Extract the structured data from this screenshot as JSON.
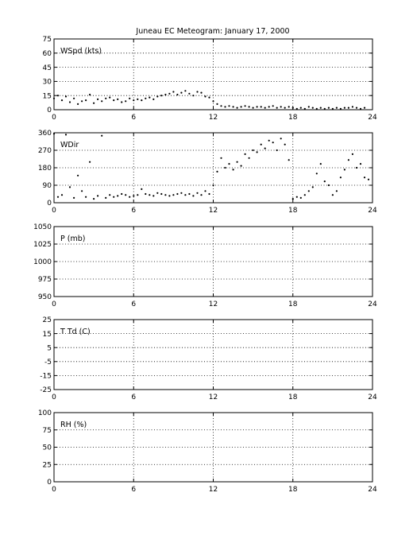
{
  "title": "Juneau EC Meteogram:   January 17, 2000",
  "chart_data": [
    {
      "type": "scatter",
      "panel_label": "WSpd (kts)",
      "xlim": [
        0,
        24
      ],
      "x_ticks": [
        0,
        6,
        12,
        18,
        24
      ],
      "ylim": [
        0,
        75
      ],
      "y_ticks": [
        0,
        15,
        30,
        45,
        60,
        75
      ],
      "grid": true,
      "series": [
        {
          "x": [
            0.0,
            0.3,
            0.6,
            0.9,
            1.2,
            1.5,
            1.8,
            2.1,
            2.4,
            2.7,
            3.0,
            3.3,
            3.6,
            3.9,
            4.2,
            4.5,
            4.8,
            5.1,
            5.4,
            5.7,
            6.0,
            6.3,
            6.6,
            6.9,
            7.2,
            7.5,
            7.8,
            8.1,
            8.4,
            8.7,
            9.0,
            9.3,
            9.6,
            9.9,
            10.2,
            10.5,
            10.8,
            11.1,
            11.4,
            11.7,
            12.0,
            12.3,
            12.6,
            12.9,
            13.2,
            13.5,
            13.8,
            14.1,
            14.4,
            14.7,
            15.0,
            15.3,
            15.6,
            15.9,
            16.2,
            16.5,
            16.8,
            17.1,
            17.4,
            17.7,
            18.0,
            18.3,
            18.6,
            18.9,
            19.2,
            19.5,
            19.8,
            20.1,
            20.4,
            20.7,
            21.0,
            21.3,
            21.6,
            21.9,
            22.2,
            22.5,
            22.8,
            23.1,
            23.4
          ],
          "y": [
            12,
            15,
            10,
            14,
            8,
            12,
            6,
            9,
            10,
            16,
            7,
            11,
            9,
            12,
            13,
            10,
            11,
            8,
            9,
            12,
            10,
            11,
            10,
            12,
            13,
            11,
            14,
            15,
            16,
            17,
            19,
            16,
            18,
            20,
            17,
            15,
            19,
            18,
            14,
            13,
            9,
            6,
            4,
            3,
            4,
            3,
            2,
            3,
            4,
            3,
            2,
            3,
            3,
            2,
            3,
            4,
            2,
            3,
            2,
            3,
            2,
            1,
            2,
            1,
            3,
            2,
            1,
            2,
            1,
            2,
            1,
            2,
            1,
            2,
            2,
            3,
            2,
            1,
            2
          ]
        }
      ]
    },
    {
      "type": "scatter",
      "panel_label": "WDir",
      "xlim": [
        0,
        24
      ],
      "x_ticks": [
        0,
        6,
        12,
        18,
        24
      ],
      "ylim": [
        0,
        360
      ],
      "y_ticks": [
        0,
        90,
        180,
        270,
        360
      ],
      "grid": true,
      "series": [
        {
          "x": [
            0.0,
            0.3,
            0.6,
            0.9,
            1.2,
            1.5,
            1.8,
            2.1,
            2.4,
            2.7,
            3.0,
            3.3,
            3.6,
            3.9,
            4.2,
            4.5,
            4.8,
            5.1,
            5.4,
            5.7,
            6.0,
            6.3,
            6.6,
            6.9,
            7.2,
            7.5,
            7.8,
            8.1,
            8.4,
            8.7,
            9.0,
            9.3,
            9.6,
            9.9,
            10.2,
            10.5,
            10.8,
            11.1,
            11.4,
            11.7,
            12.0,
            12.3,
            12.6,
            12.9,
            13.2,
            13.5,
            13.8,
            14.1,
            14.4,
            14.7,
            15.0,
            15.3,
            15.6,
            15.9,
            16.2,
            16.5,
            16.8,
            17.1,
            17.4,
            17.7,
            18.0,
            18.3,
            18.6,
            18.9,
            19.2,
            19.5,
            19.8,
            20.1,
            20.4,
            20.7,
            21.0,
            21.3,
            21.6,
            21.9,
            22.2,
            22.5,
            22.8,
            23.1,
            23.4,
            23.7
          ],
          "y": [
            355,
            30,
            40,
            350,
            80,
            25,
            140,
            60,
            30,
            210,
            20,
            35,
            345,
            25,
            40,
            30,
            35,
            45,
            40,
            30,
            35,
            40,
            70,
            45,
            40,
            35,
            50,
            45,
            40,
            35,
            40,
            45,
            50,
            40,
            45,
            35,
            50,
            40,
            60,
            45,
            90,
            160,
            230,
            180,
            200,
            170,
            210,
            190,
            250,
            230,
            270,
            260,
            300,
            280,
            320,
            310,
            270,
            330,
            300,
            220,
            20,
            30,
            25,
            40,
            60,
            80,
            150,
            200,
            110,
            90,
            40,
            60,
            130,
            170,
            220,
            250,
            180,
            200,
            130,
            120
          ]
        }
      ]
    },
    {
      "type": "scatter",
      "panel_label": "P (mb)",
      "xlim": [
        0,
        24
      ],
      "x_ticks": [
        0,
        6,
        12,
        18,
        24
      ],
      "ylim": [
        950,
        1050
      ],
      "y_ticks": [
        950,
        975,
        1000,
        1025,
        1050
      ],
      "grid": true,
      "series": []
    },
    {
      "type": "scatter",
      "panel_label": "T Td (C)",
      "xlim": [
        0,
        24
      ],
      "x_ticks": [
        0,
        6,
        12,
        18,
        24
      ],
      "ylim": [
        -25,
        25
      ],
      "y_ticks": [
        -25,
        -15,
        -5,
        5,
        15,
        25
      ],
      "grid": true,
      "series": []
    },
    {
      "type": "scatter",
      "panel_label": "RH (%)",
      "xlim": [
        0,
        24
      ],
      "x_ticks": [
        0,
        6,
        12,
        18,
        24
      ],
      "ylim": [
        0,
        100
      ],
      "y_ticks": [
        0,
        25,
        50,
        75,
        100
      ],
      "grid": true,
      "series": []
    }
  ]
}
